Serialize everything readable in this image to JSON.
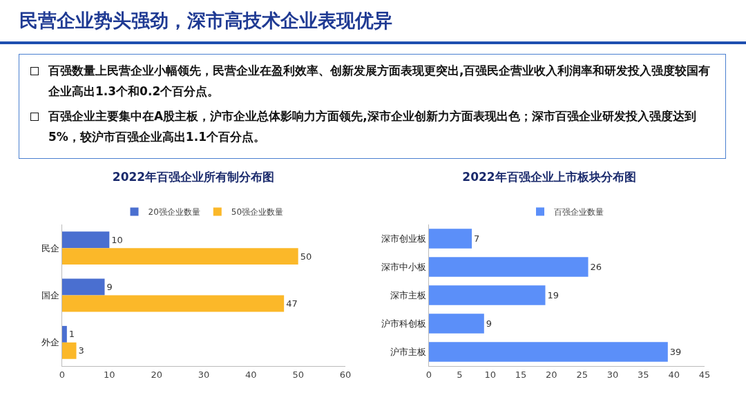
{
  "chart_data": [
    {
      "type": "other",
      "title": "民营企业势头强劲，深市高技术企业表现优异",
      "annotations": [
        "百强数量上民营企业小幅领先，民营企业在盈利效率、创新发展方面表现更突出,百强民企营业收入利润率和研发投入强度较国有企业高出1.3个和0.2个百分点。",
        "百强企业主要集中在A股主板，沪市企业总体影响力方面领先,深市企业创新力方面表现出色；深市百强企业研发投入强度达到5%，较沪市百强企业高出1.1个百分点。"
      ]
    },
    {
      "type": "bar",
      "title": "2022年百强企业所有制分布图",
      "orientation": "horizontal",
      "categories": [
        "民企",
        "国企",
        "外企"
      ],
      "series": [
        {
          "name": "20强企业数量",
          "color": "#4a6fd0",
          "values": [
            10,
            9,
            1
          ]
        },
        {
          "name": "50强企业数量",
          "color": "#fbb829",
          "values": [
            50,
            47,
            3
          ]
        }
      ],
      "xlim": [
        0,
        60
      ],
      "xticks": [
        0,
        10,
        20,
        30,
        40,
        50,
        60
      ],
      "data_labels": true,
      "legend": "top"
    },
    {
      "type": "bar",
      "title": "2022年百强企业上市板块分布图",
      "orientation": "horizontal",
      "categories": [
        "深市创业板",
        "深市中小板",
        "深市主板",
        "沪市科创板",
        "沪市主板"
      ],
      "series": [
        {
          "name": "百强企业数量",
          "color": "#5b8ff9",
          "values": [
            7,
            26,
            19,
            9,
            39
          ]
        }
      ],
      "xlim": [
        0,
        45
      ],
      "xticks": [
        0,
        5,
        10,
        15,
        20,
        25,
        30,
        35,
        40,
        45
      ],
      "data_labels": true,
      "legend": "top"
    }
  ]
}
